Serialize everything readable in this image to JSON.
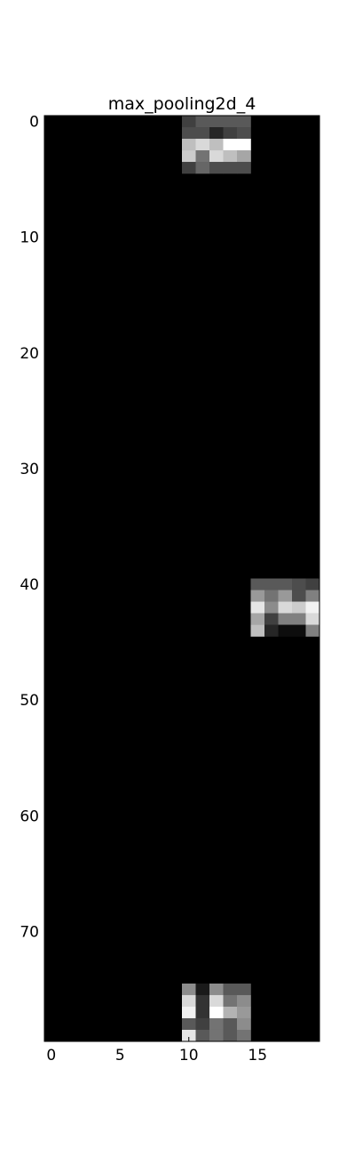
{
  "chart_data": {
    "type": "heatmap",
    "title": "max_pooling2d_4",
    "xlabel": "",
    "ylabel": "",
    "colormap": "gray",
    "background_value": 0,
    "rows": 80,
    "cols": 20,
    "xlim": [
      -0.5,
      19.5
    ],
    "ylim": [
      79.5,
      -0.5
    ],
    "x_ticks": [
      0,
      5,
      10,
      15
    ],
    "x_tick_labels": [
      "0",
      "5",
      "10",
      "15"
    ],
    "y_ticks": [
      0,
      10,
      20,
      30,
      40,
      50,
      60,
      70
    ],
    "y_tick_labels": [
      "0",
      "10",
      "20",
      "30",
      "40",
      "50",
      "60",
      "70"
    ],
    "grid": false,
    "legend": "none",
    "blocks": [
      {
        "row_start": 0,
        "col_start": 10,
        "values": [
          [
            0.25,
            0.35,
            0.35,
            0.35,
            0.35
          ],
          [
            0.3,
            0.3,
            0.15,
            0.25,
            0.3
          ],
          [
            0.75,
            0.85,
            0.75,
            1.0,
            1.0
          ],
          [
            0.8,
            0.45,
            0.85,
            0.75,
            0.65
          ],
          [
            0.25,
            0.4,
            0.3,
            0.3,
            0.3
          ]
        ]
      },
      {
        "row_start": 40,
        "col_start": 15,
        "values": [
          [
            0.35,
            0.35,
            0.35,
            0.3,
            0.25
          ],
          [
            0.6,
            0.45,
            0.6,
            0.3,
            0.5
          ],
          [
            0.9,
            0.55,
            0.85,
            0.8,
            0.95
          ],
          [
            0.65,
            0.25,
            0.5,
            0.5,
            0.85
          ],
          [
            0.75,
            0.15,
            0.05,
            0.05,
            0.5
          ]
        ]
      },
      {
        "row_start": 75,
        "col_start": 10,
        "values": [
          [
            0.55,
            0.1,
            0.55,
            0.35,
            0.35
          ],
          [
            0.85,
            0.2,
            0.85,
            0.45,
            0.55
          ],
          [
            0.95,
            0.2,
            1.0,
            0.7,
            0.6
          ],
          [
            0.35,
            0.25,
            0.45,
            0.35,
            0.55
          ],
          [
            0.9,
            0.35,
            0.45,
            0.35,
            0.45
          ]
        ]
      }
    ]
  }
}
